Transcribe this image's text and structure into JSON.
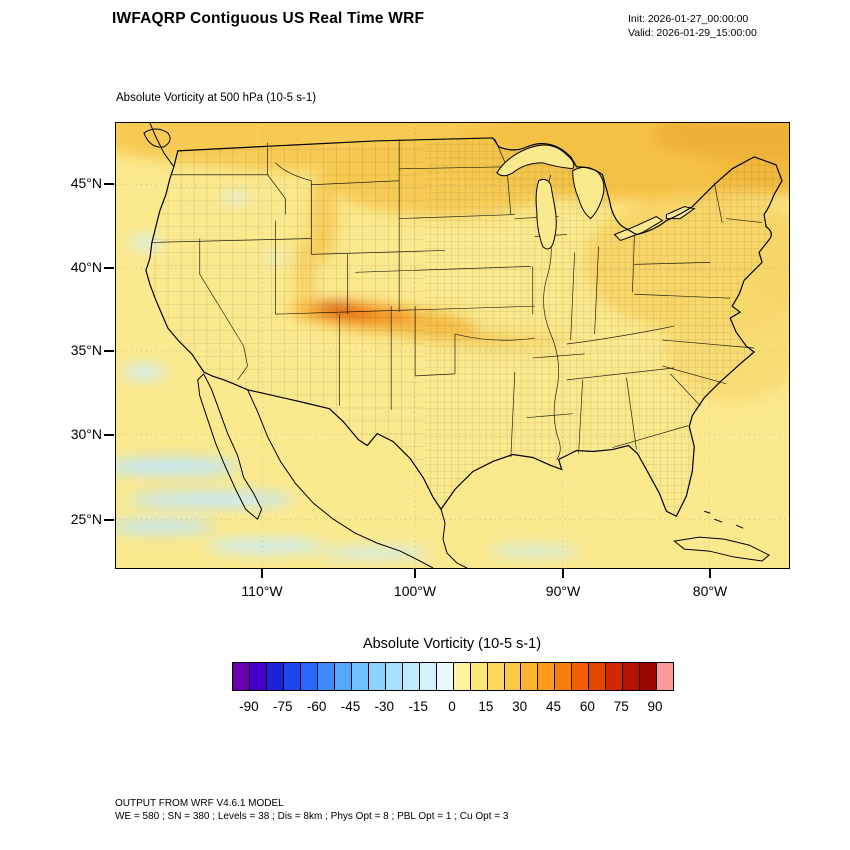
{
  "header": {
    "title": "IWFAQRP Contiguous US Real Time WRF",
    "init_label": "Init: 2026-01-27_00:00:00",
    "valid_label": "Valid: 2026-01-29_15:00:00"
  },
  "map": {
    "subtitle": "Absolute Vorticity at 500 hPa   (10-5 s-1)",
    "region": "Contiguous United States"
  },
  "chart_data": {
    "type": "heatmap",
    "title": "Absolute Vorticity at 500 hPa",
    "units": "10-5 s-1",
    "lat_ticks": [
      "45°N",
      "40°N",
      "35°N",
      "30°N",
      "25°N"
    ],
    "lon_ticks": [
      "110°W",
      "100°W",
      "90°W",
      "80°W"
    ],
    "colorbar": {
      "title": "Absolute Vorticity  (10-5 s-1)",
      "tick_values": [
        -90,
        -75,
        -60,
        -45,
        -30,
        -15,
        0,
        15,
        30,
        45,
        60,
        75,
        90
      ],
      "min": -97.5,
      "max": 97.5,
      "interval": 7.5,
      "colors": [
        "#6a00b0",
        "#4400c8",
        "#2020dc",
        "#1e46f0",
        "#2868fa",
        "#3c8cff",
        "#55a8ff",
        "#6ec0ff",
        "#8cd4ff",
        "#a5e1ff",
        "#bdebff",
        "#d2f3ff",
        "#e6faff",
        "#fff3a0",
        "#ffe87a",
        "#ffd95c",
        "#ffc844",
        "#ffb32e",
        "#ff9a1e",
        "#fb7d0a",
        "#f25f00",
        "#e64500",
        "#d02800",
        "#b51400",
        "#990700",
        "#ff9999"
      ]
    },
    "features": [
      {
        "region": "most of CONUS and southern ocean areas",
        "value_range": "0 to 15"
      },
      {
        "region": "northern tier of US and southern Canada",
        "value_range": "15 to 30"
      },
      {
        "region": "Colorado / Kansas streak near 37.5N 105W",
        "value_range": "45 to 75 (local max)"
      },
      {
        "region": "Pacific off Baja California and far southern map edge",
        "value_range": "-15 to 0 patches"
      },
      {
        "region": "northeast corner (Canada)",
        "value_range": "15 to 30 banded arcs"
      }
    ]
  },
  "footer": {
    "line1": "OUTPUT FROM WRF V4.6.1 MODEL",
    "line2": "WE = 580 ; SN = 380 ; Levels = 38 ; Dis = 8km ; Phys Opt = 8 ; PBL Opt = 1 ; Cu Opt = 3"
  }
}
